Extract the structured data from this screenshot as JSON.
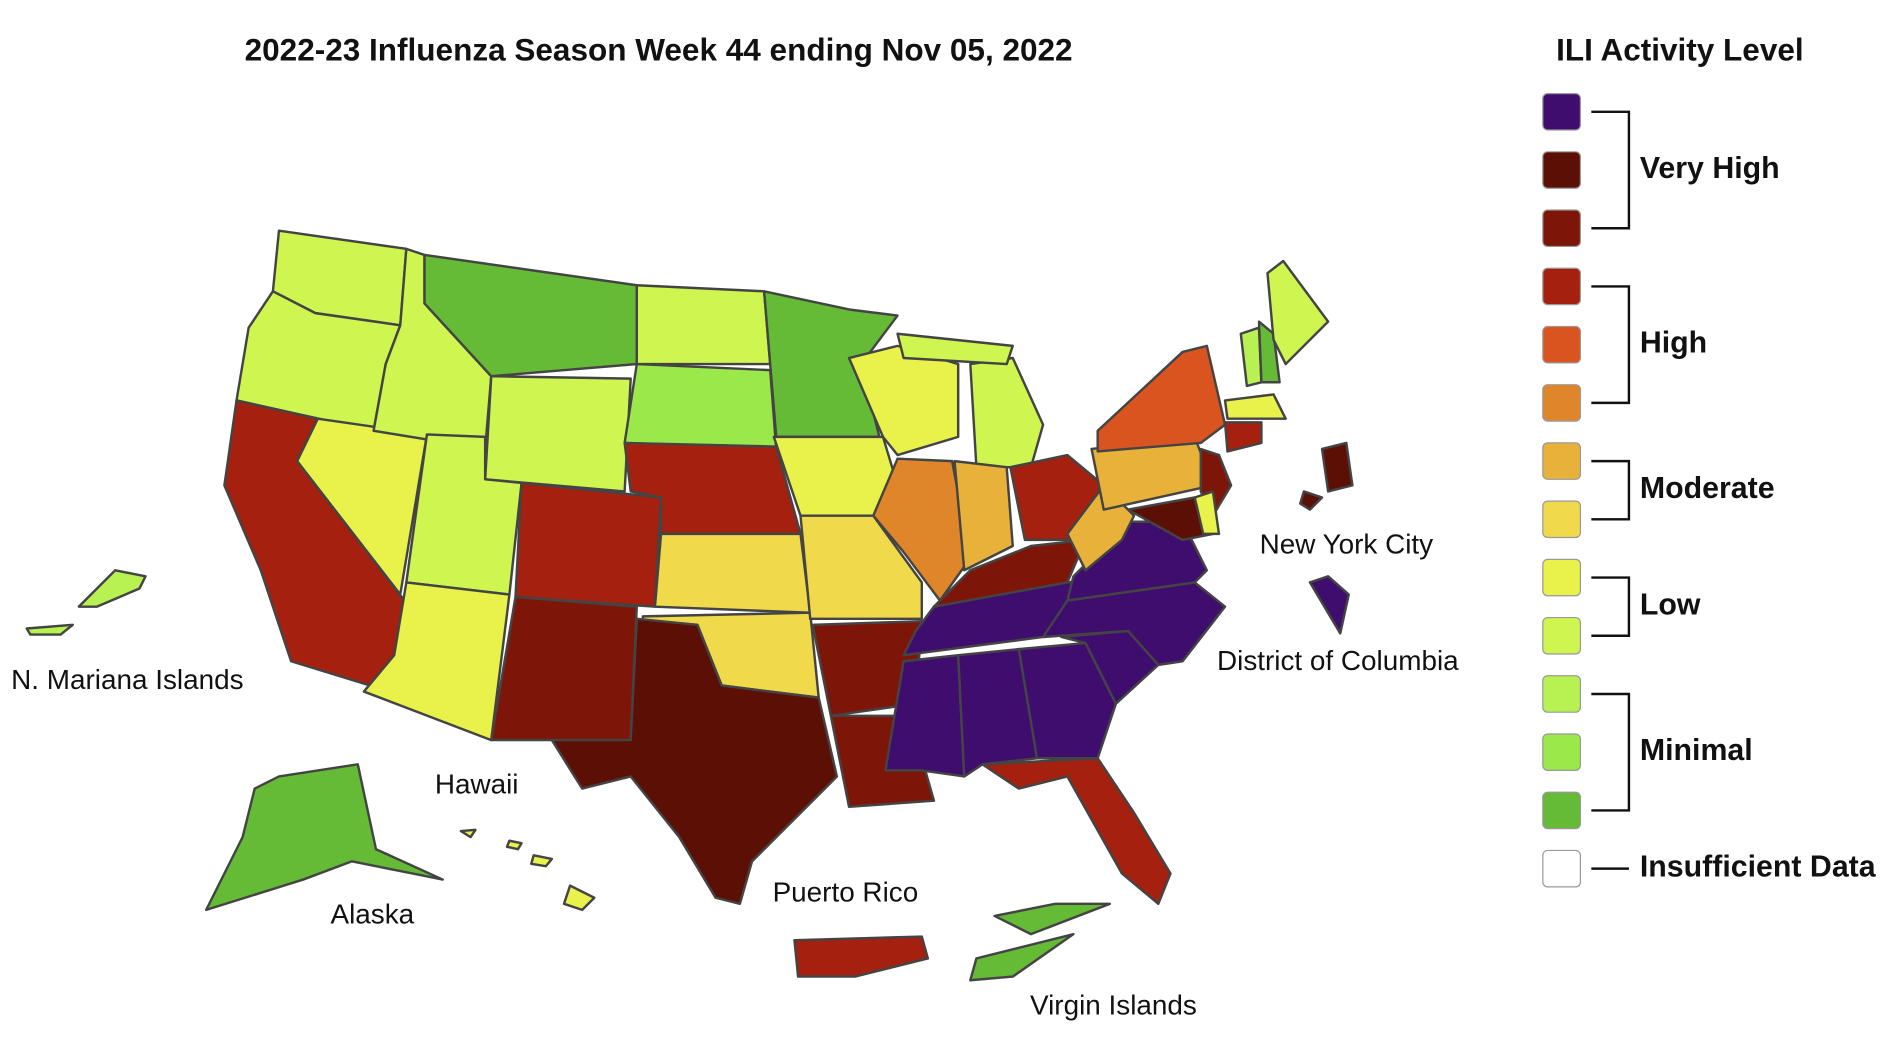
{
  "header": {
    "title": "2022-23 Influenza Season Week 44 ending Nov 05, 2022"
  },
  "map_labels": [
    "New York City",
    "District of Columbia",
    "N. Mariana Islands",
    "Hawaii",
    "Alaska",
    "Puerto Rico",
    "Virgin Islands"
  ],
  "legend": {
    "title": "ILI Activity Level",
    "levels": [
      "#3f0d6e",
      "#5c0f05",
      "#7d1608",
      "#a5200f",
      "#d9541e",
      "#e0862a",
      "#e8b23a",
      "#f0d94a",
      "#e8f24a",
      "#cef550",
      "#b8f252",
      "#9be84a",
      "#65bb35"
    ],
    "groups": [
      {
        "label": "Very High"
      },
      {
        "label": "High"
      },
      {
        "label": "Moderate"
      },
      {
        "label": "Low"
      },
      {
        "label": "Minimal"
      }
    ],
    "insufficient": {
      "label": "Insufficient Data",
      "color": "#ffffff"
    }
  },
  "regions": [
    "#cef550",
    "#cef550",
    "#a5200f",
    "#e8f24a",
    "#cef550",
    "#65bb35",
    "#cef550",
    "#cef550",
    "#e8f24a",
    "#a5200f",
    "#7d1608",
    "#cef550",
    "#9be84a",
    "#a5200f",
    "#f0d94a",
    "#f0d94a",
    "#5c0f05",
    "#65bb35",
    "#e8f24a",
    "#f0d94a",
    "#7d1608",
    "#7d1608",
    "#e8f24a",
    "#e0862a",
    "#cef550",
    "#cef550",
    "#e8b23a",
    "#a5200f",
    "#7d1608",
    "#3f0d6e",
    "#3f0d6e",
    "#3f0d6e",
    "#3f0d6e",
    "#a5200f",
    "#3f0d6e",
    "#3f0d6e",
    "#3f0d6e",
    "#e8b23a",
    "#e8b23a",
    "#d9541e",
    "#b8f252",
    "#65bb35",
    "#cef550",
    "#e8f24a",
    "#a5200f",
    "#7d1608",
    "#5c0f05",
    "#e8f24a",
    "#65bb35",
    "#e8f24a",
    "#a5200f",
    "#65bb35",
    "#65bb35",
    "#b8f252",
    "#b8f252",
    "#5c0f05",
    "#5c0f05",
    "#3f0d6e"
  ]
}
